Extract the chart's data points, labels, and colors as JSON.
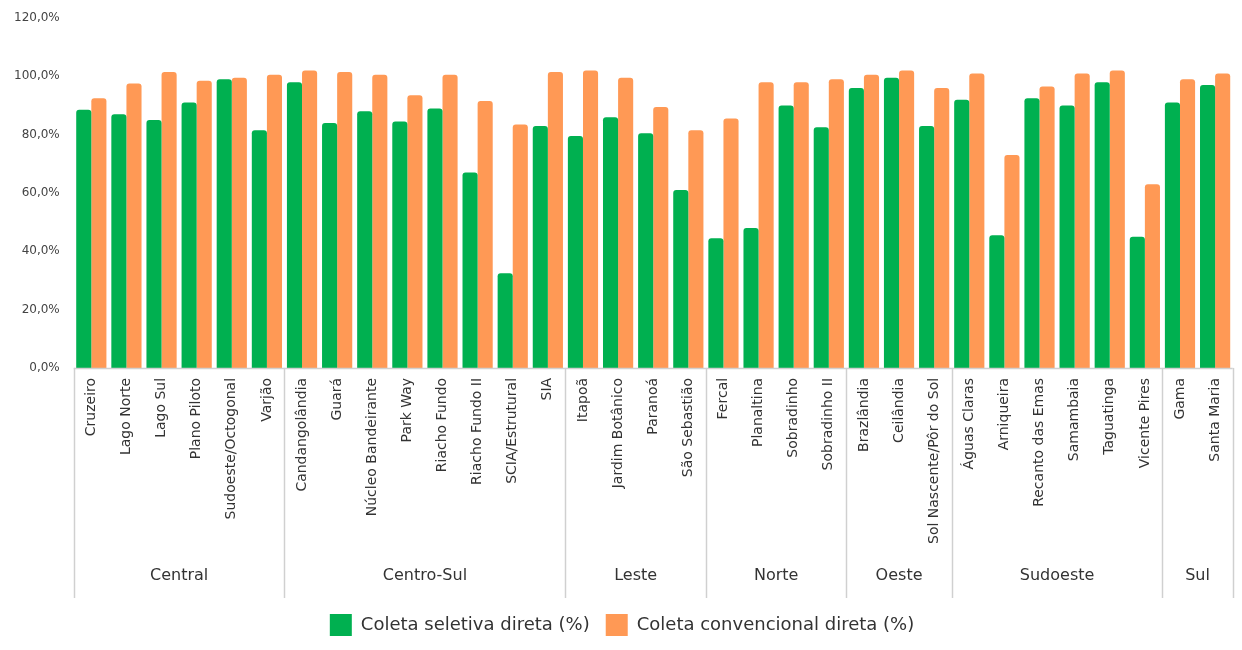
{
  "chart_data": {
    "type": "bar",
    "categories": [
      "Cruzeiro",
      "Lago Norte",
      "Lago Sul",
      "Plano Piloto",
      "Sudoeste/Octogonal",
      "Varjão",
      "Candangolândia",
      "Guará",
      "Núcleo Bandeirante",
      "Park Way",
      "Riacho Fundo",
      "Riacho Fundo II",
      "SCIA/Estrutural",
      "SIA",
      "Itapoã",
      "Jardim Botânico",
      "Paranoá",
      "São Sebastião",
      "Fercal",
      "Planaltina",
      "Sobradinho",
      "Sobradinho II",
      "Brazlândia",
      "Ceilândia",
      "Sol Nascente/Pôr do Sol",
      "Águas Claras",
      "Arniqueira",
      "Recanto das Emas",
      "Samambaia",
      "Taguatinga",
      "Vicente Pires",
      "Gama",
      "Santa Maria"
    ],
    "series": [
      {
        "name": "Coleta seletiva direta (%)",
        "color": "#00b050",
        "values": [
          88.5,
          87,
          85,
          91,
          99,
          81.5,
          98,
          84,
          88,
          84.5,
          89,
          67,
          32.5,
          83,
          79.5,
          86,
          80.5,
          61,
          44.5,
          48,
          90,
          82.5,
          96,
          99.5,
          83,
          92,
          45.5,
          92.5,
          90,
          98,
          45,
          91,
          97
        ]
      },
      {
        "name": "Coleta convencional direta (%)",
        "color": "#ff9955",
        "values": [
          92.5,
          97.5,
          101.5,
          98.5,
          99.5,
          100.5,
          102,
          101.5,
          100.5,
          93.5,
          100.5,
          91.5,
          83.5,
          101.5,
          102,
          99.5,
          89.5,
          81.5,
          85.5,
          98,
          98,
          99,
          100.5,
          102,
          96,
          101,
          73,
          96.5,
          101,
          102,
          63,
          99,
          101
        ]
      }
    ],
    "ylim": [
      0,
      120
    ],
    "yticks": [
      {
        "value": 0,
        "label": "0,0%"
      },
      {
        "value": 20,
        "label": "20,0%"
      },
      {
        "value": 40,
        "label": "40,0%"
      },
      {
        "value": 60,
        "label": "60,0%"
      },
      {
        "value": 80,
        "label": "80,0%"
      },
      {
        "value": 100,
        "label": "100,0%"
      },
      {
        "value": 120,
        "label": "120,0%"
      }
    ],
    "annotations": [
      "Central",
      "Centro-Sul",
      "Leste",
      "Norte",
      "Oeste",
      "Sudoeste",
      "Sul"
    ],
    "grid": false,
    "legend": "bottom"
  }
}
